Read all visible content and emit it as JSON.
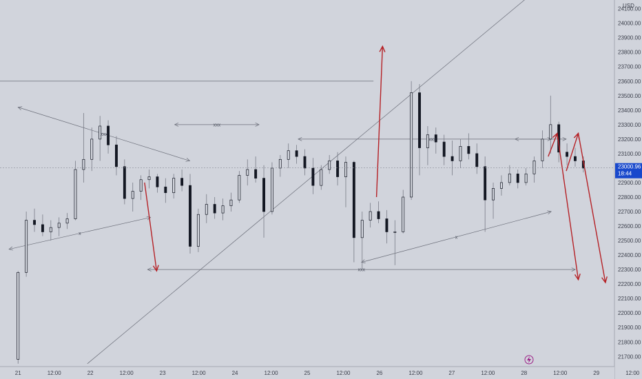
{
  "chart_data": {
    "type": "candlestick",
    "currency_label": "USD",
    "y_ticks": [
      21700,
      21800,
      21900,
      22000,
      22100,
      22200,
      22300,
      22400,
      22500,
      22600,
      22700,
      22800,
      22900,
      23000,
      23100,
      23200,
      23300,
      23400,
      23500,
      23600,
      23700,
      23800,
      23900,
      24000,
      24100
    ],
    "ylim": [
      21630,
      24160
    ],
    "x_ticks": [
      "21",
      "12:00",
      "22",
      "12:00",
      "23",
      "12:00",
      "24",
      "12:00",
      "25",
      "12:00",
      "26",
      "12:00",
      "27",
      "12:00",
      "28",
      "12:00",
      "29",
      "12:00"
    ],
    "x_range_hours": [
      -6,
      198
    ],
    "last_price": {
      "value": "23000.96",
      "countdown": "18:44"
    },
    "ohlc": [
      [
        0,
        21680,
        22290,
        21650,
        22280
      ],
      [
        1,
        22280,
        22700,
        22250,
        22640
      ],
      [
        2,
        22640,
        22720,
        22560,
        22610
      ],
      [
        3,
        22610,
        22680,
        22530,
        22560
      ],
      [
        4,
        22560,
        22640,
        22500,
        22590
      ],
      [
        5,
        22590,
        22660,
        22530,
        22620
      ],
      [
        6,
        22620,
        22690,
        22580,
        22650
      ],
      [
        7,
        22650,
        23050,
        22640,
        22990
      ],
      [
        8,
        22990,
        23380,
        22900,
        23060
      ],
      [
        9,
        23060,
        23280,
        22980,
        23200
      ],
      [
        10,
        23200,
        23360,
        23050,
        23290
      ],
      [
        11,
        23290,
        23330,
        23100,
        23160
      ],
      [
        12,
        23160,
        23220,
        22950,
        23010
      ],
      [
        13,
        23010,
        23060,
        22750,
        22790
      ],
      [
        14,
        22790,
        22900,
        22700,
        22840
      ],
      [
        15,
        22840,
        22950,
        22780,
        22920
      ],
      [
        16,
        22920,
        22990,
        22860,
        22940
      ],
      [
        17,
        22940,
        22960,
        22830,
        22870
      ],
      [
        18,
        22870,
        22930,
        22760,
        22830
      ],
      [
        19,
        22830,
        22960,
        22790,
        22930
      ],
      [
        20,
        22930,
        22990,
        22840,
        22880
      ],
      [
        21,
        22880,
        22960,
        22410,
        22460
      ],
      [
        22,
        22460,
        22720,
        22420,
        22680
      ],
      [
        23,
        22680,
        22820,
        22620,
        22750
      ],
      [
        24,
        22750,
        22800,
        22650,
        22690
      ],
      [
        25,
        22690,
        22790,
        22640,
        22740
      ],
      [
        26,
        22740,
        22830,
        22700,
        22780
      ],
      [
        27,
        22780,
        22980,
        22760,
        22950
      ],
      [
        28,
        22950,
        23060,
        22880,
        22990
      ],
      [
        29,
        22990,
        23080,
        22900,
        22930
      ],
      [
        30,
        22930,
        23020,
        22520,
        22700
      ],
      [
        31,
        22700,
        23040,
        22680,
        23000
      ],
      [
        32,
        23000,
        23090,
        22940,
        23060
      ],
      [
        33,
        23060,
        23170,
        23000,
        23120
      ],
      [
        34,
        23120,
        23160,
        23030,
        23080
      ],
      [
        35,
        23080,
        23130,
        22950,
        23000
      ],
      [
        36,
        23000,
        23070,
        22820,
        22880
      ],
      [
        37,
        22880,
        23020,
        22850,
        22990
      ],
      [
        38,
        22990,
        23090,
        22960,
        23050
      ],
      [
        39,
        23050,
        23110,
        22880,
        22940
      ],
      [
        40,
        22940,
        23080,
        22730,
        23040
      ],
      [
        41,
        23040,
        23050,
        22350,
        22520
      ],
      [
        42,
        22520,
        22700,
        22300,
        22640
      ],
      [
        43,
        22640,
        22760,
        22590,
        22700
      ],
      [
        44,
        22700,
        22770,
        22620,
        22650
      ],
      [
        45,
        22650,
        22710,
        22480,
        22560
      ],
      [
        46,
        22560,
        22640,
        22330,
        22560
      ],
      [
        47,
        22560,
        22850,
        22550,
        22800
      ],
      [
        48,
        22800,
        23600,
        22780,
        23520
      ],
      [
        49,
        23520,
        23580,
        22950,
        23140
      ],
      [
        50,
        23140,
        23290,
        23020,
        23230
      ],
      [
        51,
        23230,
        23280,
        23100,
        23180
      ],
      [
        52,
        23180,
        23230,
        23020,
        23080
      ],
      [
        53,
        23080,
        23190,
        22950,
        23050
      ],
      [
        54,
        23050,
        23200,
        23000,
        23150
      ],
      [
        55,
        23150,
        23240,
        23060,
        23100
      ],
      [
        56,
        23100,
        23170,
        22960,
        23010
      ],
      [
        57,
        23010,
        23080,
        22560,
        22780
      ],
      [
        58,
        22780,
        22900,
        22650,
        22860
      ],
      [
        59,
        22860,
        22950,
        22810,
        22900
      ],
      [
        60,
        22900,
        23020,
        22880,
        22960
      ],
      [
        61,
        22960,
        22990,
        22860,
        22900
      ],
      [
        62,
        22900,
        23000,
        22880,
        22960
      ],
      [
        63,
        22960,
        23080,
        22900,
        23050
      ],
      [
        64,
        23050,
        23260,
        23000,
        23200
      ],
      [
        65,
        23200,
        23500,
        23100,
        23300
      ],
      [
        66,
        23300,
        23320,
        23040,
        23110
      ],
      [
        67,
        23110,
        23170,
        23020,
        23080
      ],
      [
        68,
        23080,
        23140,
        23010,
        23050
      ],
      [
        69,
        23050,
        23080,
        22970,
        23000
      ]
    ],
    "annotations": [
      {
        "label": "xxx",
        "kind": "gray-arrow",
        "from": [
          0,
          23420
        ],
        "to": [
          57,
          23050
        ]
      },
      {
        "label": "xxx",
        "kind": "gray-arrow",
        "from": [
          52,
          23300
        ],
        "to": [
          80,
          23300
        ]
      },
      {
        "label": "xxx",
        "kind": "gray-arrow",
        "from": [
          93,
          23200
        ],
        "to": [
          182,
          23200
        ]
      },
      {
        "label": "",
        "kind": "gray-arrow",
        "from": [
          165,
          23200
        ],
        "to": [
          177,
          23200
        ]
      },
      {
        "label": "x",
        "kind": "gray-arrow",
        "from": [
          -3,
          22440
        ],
        "to": [
          44,
          22660
        ]
      },
      {
        "label": "x",
        "kind": "gray-arrow",
        "from": [
          114,
          22350
        ],
        "to": [
          177,
          22700
        ]
      },
      {
        "label": "xxx",
        "kind": "gray-arrow",
        "from": [
          43,
          22300
        ],
        "to": [
          185,
          22300
        ]
      },
      {
        "label": "",
        "kind": "gray-line",
        "from": [
          -6,
          23600
        ],
        "to": [
          118,
          23600
        ]
      },
      {
        "label": "",
        "kind": "gray-line",
        "from": [
          23,
          21650
        ],
        "to": [
          171,
          24210
        ]
      },
      {
        "label": "",
        "kind": "red-arrow",
        "from": [
          42,
          22900
        ],
        "to": [
          46,
          22290
        ]
      },
      {
        "label": "",
        "kind": "red-arrow",
        "from": [
          119,
          22800
        ],
        "to": [
          121,
          23840
        ]
      },
      {
        "label": "",
        "kind": "red-arrow",
        "from": [
          182,
          22980
        ],
        "to": [
          186,
          23240
        ]
      },
      {
        "label": "",
        "kind": "red-arrow",
        "from": [
          186,
          23240
        ],
        "to": [
          195,
          22210
        ]
      },
      {
        "label": "",
        "kind": "red-arrow",
        "from": [
          176,
          23080
        ],
        "to": [
          179,
          23240
        ]
      },
      {
        "label": "",
        "kind": "red-arrow",
        "from": [
          179,
          23240
        ],
        "to": [
          186,
          22230
        ]
      }
    ],
    "grid": false,
    "colors": {
      "background": "#d1d4dc",
      "candle": "#131722",
      "wick": "#787b86",
      "red_arrow": "#b52025",
      "gray_line": "#6a6d78",
      "price_badge": "#1848cc"
    }
  }
}
